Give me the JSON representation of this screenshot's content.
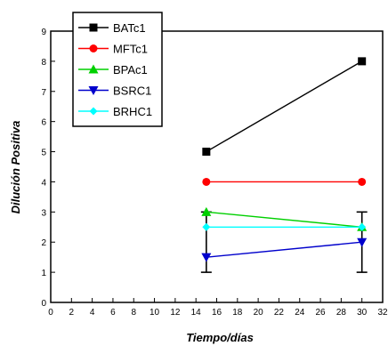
{
  "chart_data": {
    "type": "line",
    "xlabel": "Tiempo/días",
    "ylabel": "Dilución Positiva",
    "xlim": [
      0,
      32
    ],
    "ylim": [
      0,
      9
    ],
    "xticks": [
      0,
      2,
      4,
      6,
      8,
      10,
      12,
      14,
      16,
      18,
      20,
      22,
      24,
      26,
      28,
      30,
      32
    ],
    "yticks": [
      0,
      1,
      2,
      3,
      4,
      5,
      6,
      7,
      8,
      9
    ],
    "grid": false,
    "legend_position": "top-left",
    "series": [
      {
        "name": "BATc1",
        "color": "#000000",
        "marker": "square",
        "x": [
          15,
          30
        ],
        "y": [
          5,
          8
        ]
      },
      {
        "name": "MFTc1",
        "color": "#ff0000",
        "marker": "circle",
        "x": [
          15,
          30
        ],
        "y": [
          4,
          4
        ]
      },
      {
        "name": "BPAc1",
        "color": "#00d000",
        "marker": "triangle-up",
        "x": [
          15,
          30
        ],
        "y": [
          3,
          2.5
        ]
      },
      {
        "name": "BSRC1",
        "color": "#0000cc",
        "marker": "triangle-down",
        "x": [
          15,
          30
        ],
        "y": [
          1.5,
          2
        ]
      },
      {
        "name": "BRHC1",
        "color": "#00ffff",
        "marker": "diamond",
        "x": [
          15,
          30
        ],
        "y": [
          2.5,
          2.5
        ]
      }
    ],
    "error_bars": [
      {
        "x": 15,
        "low": 1,
        "high": 3
      },
      {
        "x": 30,
        "low": 1,
        "high": 3
      }
    ]
  }
}
